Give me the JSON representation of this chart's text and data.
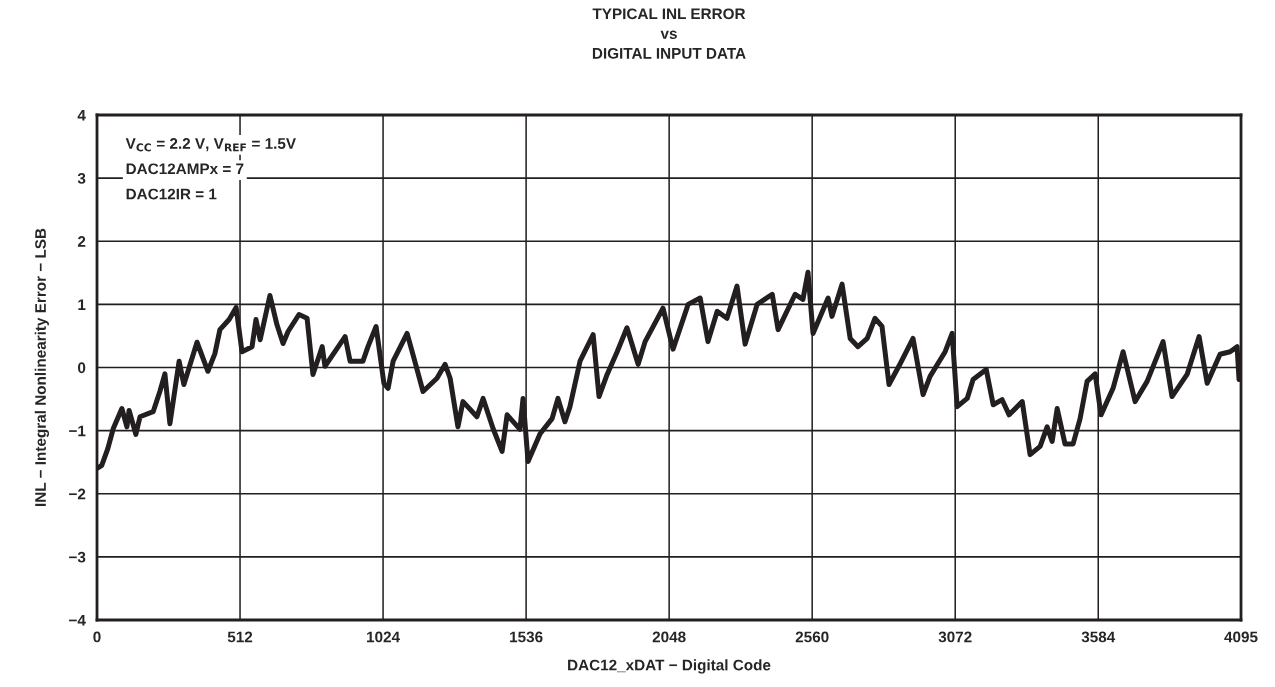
{
  "chart_data": {
    "type": "line",
    "title": "TYPICAL INL ERROR\nvs\nDIGITAL INPUT DATA",
    "xlabel": "DAC12_xDAT − Digital Code",
    "ylabel": "INL − Integral Nonlinearity Error − LSB",
    "annotations": [
      "V$_{CC}$ = 2.2 V, V$_{REF}$ = 1.5V",
      "DAC12AMPx = 7",
      "DAC12IR = 1"
    ],
    "x": [
      0,
      17,
      39,
      58,
      89,
      107,
      115,
      139,
      154,
      201,
      225,
      243,
      261,
      294,
      311,
      358,
      397,
      422,
      440,
      473,
      498,
      519,
      555,
      569,
      584,
      619,
      644,
      666,
      684,
      723,
      752,
      773,
      806,
      816,
      859,
      888,
      906,
      952,
      970,
      999,
      1027,
      1042,
      1060,
      1110,
      1135,
      1167,
      1217,
      1246,
      1264,
      1292,
      1310,
      1360,
      1382,
      1418,
      1450,
      1468,
      1514,
      1525,
      1543,
      1586,
      1629,
      1650,
      1675,
      1693,
      1729,
      1776,
      1797,
      1826,
      1862,
      1897,
      1937,
      1962,
      2026,
      2062,
      2116,
      2159,
      2187,
      2220,
      2255,
      2291,
      2320,
      2363,
      2417,
      2438,
      2499,
      2527,
      2545,
      2563,
      2617,
      2631,
      2667,
      2696,
      2724,
      2757,
      2785,
      2810,
      2835,
      2875,
      2921,
      2957,
      2982,
      3036,
      3061,
      3079,
      3115,
      3136,
      3183,
      3208,
      3240,
      3265,
      3312,
      3340,
      3376,
      3401,
      3419,
      3437,
      3465,
      3494,
      3519,
      3544,
      3573,
      3594,
      3637,
      3673,
      3716,
      3759,
      3816,
      3848,
      3902,
      3945,
      3974,
      4020,
      4056,
      4081,
      4088
    ],
    "series": [
      {
        "color": "#231f20",
        "values": [
          -1.6,
          -1.55,
          -1.28,
          -0.97,
          -0.65,
          -0.94,
          -0.68,
          -1.06,
          -0.78,
          -0.7,
          -0.38,
          -0.1,
          -0.89,
          0.1,
          -0.27,
          0.4,
          -0.06,
          0.22,
          0.6,
          0.76,
          0.95,
          0.25,
          0.33,
          0.76,
          0.44,
          1.14,
          0.68,
          0.38,
          0.57,
          0.84,
          0.78,
          -0.11,
          0.33,
          0.02,
          0.3,
          0.49,
          0.1,
          0.1,
          0.33,
          0.65,
          -0.25,
          -0.33,
          0.1,
          0.54,
          0.14,
          -0.38,
          -0.17,
          0.05,
          -0.17,
          -0.94,
          -0.54,
          -0.78,
          -0.49,
          -0.97,
          -1.33,
          -0.75,
          -0.98,
          -0.49,
          -1.49,
          -1.05,
          -0.81,
          -0.49,
          -0.86,
          -0.62,
          0.1,
          0.52,
          -0.46,
          -0.11,
          0.25,
          0.63,
          0.05,
          0.41,
          0.94,
          0.29,
          1.0,
          1.1,
          0.41,
          0.89,
          0.78,
          1.29,
          0.37,
          1.0,
          1.16,
          0.6,
          1.16,
          1.08,
          1.51,
          0.54,
          1.1,
          0.81,
          1.32,
          0.46,
          0.33,
          0.46,
          0.78,
          0.65,
          -0.27,
          0.06,
          0.46,
          -0.43,
          -0.14,
          0.25,
          0.54,
          -0.62,
          -0.49,
          -0.19,
          -0.03,
          -0.59,
          -0.51,
          -0.75,
          -0.54,
          -1.38,
          -1.25,
          -0.94,
          -1.17,
          -0.65,
          -1.21,
          -1.21,
          -0.81,
          -0.22,
          -0.1,
          -0.75,
          -0.33,
          0.25,
          -0.54,
          -0.22,
          0.41,
          -0.46,
          -0.11,
          0.49,
          -0.25,
          0.21,
          0.25,
          0.33,
          -0.19
        ]
      }
    ],
    "xlim": [
      0,
      4095
    ],
    "xticks": [
      0,
      512,
      1024,
      1536,
      2048,
      2560,
      3072,
      3584,
      4095
    ],
    "ylim": [
      -4,
      4
    ],
    "yticks": [
      {
        "value": -4,
        "label": "−4"
      },
      {
        "value": -3,
        "label": "−3"
      },
      {
        "value": -2,
        "label": "−2"
      },
      {
        "value": -1,
        "label": "−1"
      },
      0,
      1,
      2,
      3,
      4
    ],
    "grid": true,
    "line_style": "solid",
    "marker": "none"
  }
}
